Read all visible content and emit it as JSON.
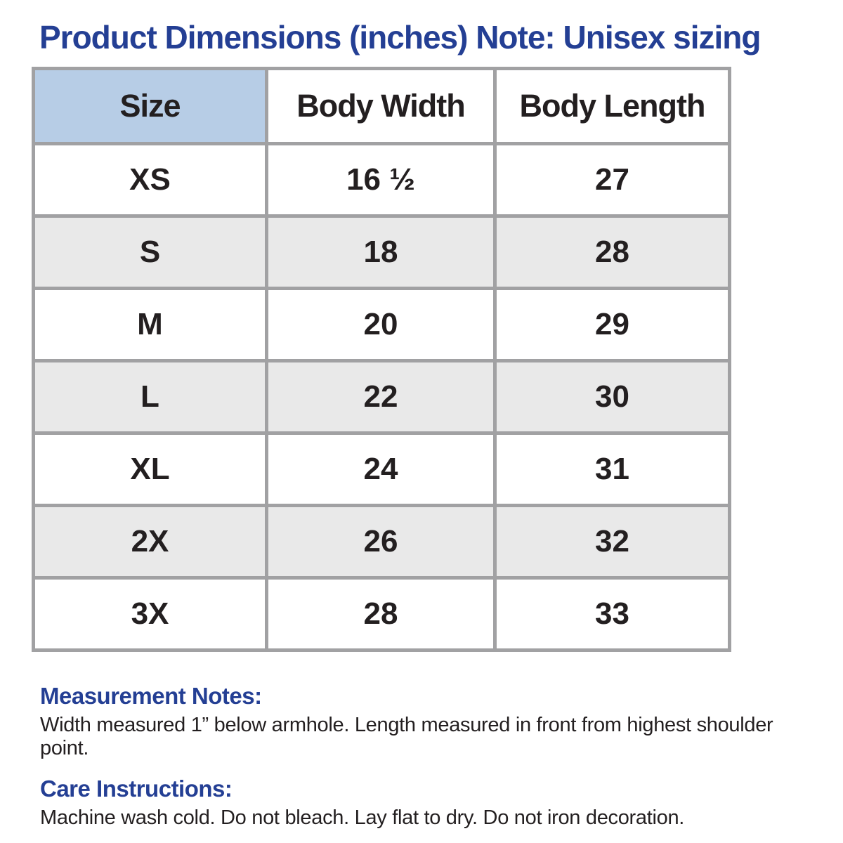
{
  "title": "Product Dimensions (inches) Note: Unisex sizing",
  "chart_data": {
    "type": "table",
    "title": "Product Dimensions (inches) Note: Unisex sizing",
    "units": "inches",
    "columns": [
      "Size",
      "Body Width",
      "Body Length"
    ],
    "rows": [
      [
        "XS",
        "16 ½",
        "27"
      ],
      [
        "S",
        "18",
        "28"
      ],
      [
        "M",
        "20",
        "29"
      ],
      [
        "L",
        "22",
        "30"
      ],
      [
        "XL",
        "24",
        "31"
      ],
      [
        "2X",
        "26",
        "32"
      ],
      [
        "3X",
        "28",
        "33"
      ]
    ]
  },
  "notes": {
    "measurement_heading": "Measurement Notes:",
    "measurement_text": "Width measured 1” below armhole. Length measured in front from highest shoulder point.",
    "care_heading": "Care Instructions:",
    "care_text": "Machine wash cold. Do not bleach. Lay flat to dry. Do not iron decoration."
  },
  "colors": {
    "heading_blue": "#243f94",
    "size_header_bg": "#b7cde6",
    "row_alt_bg": "#e9e9e9",
    "grid_border": "#a1a1a3",
    "text_black": "#231f20"
  }
}
